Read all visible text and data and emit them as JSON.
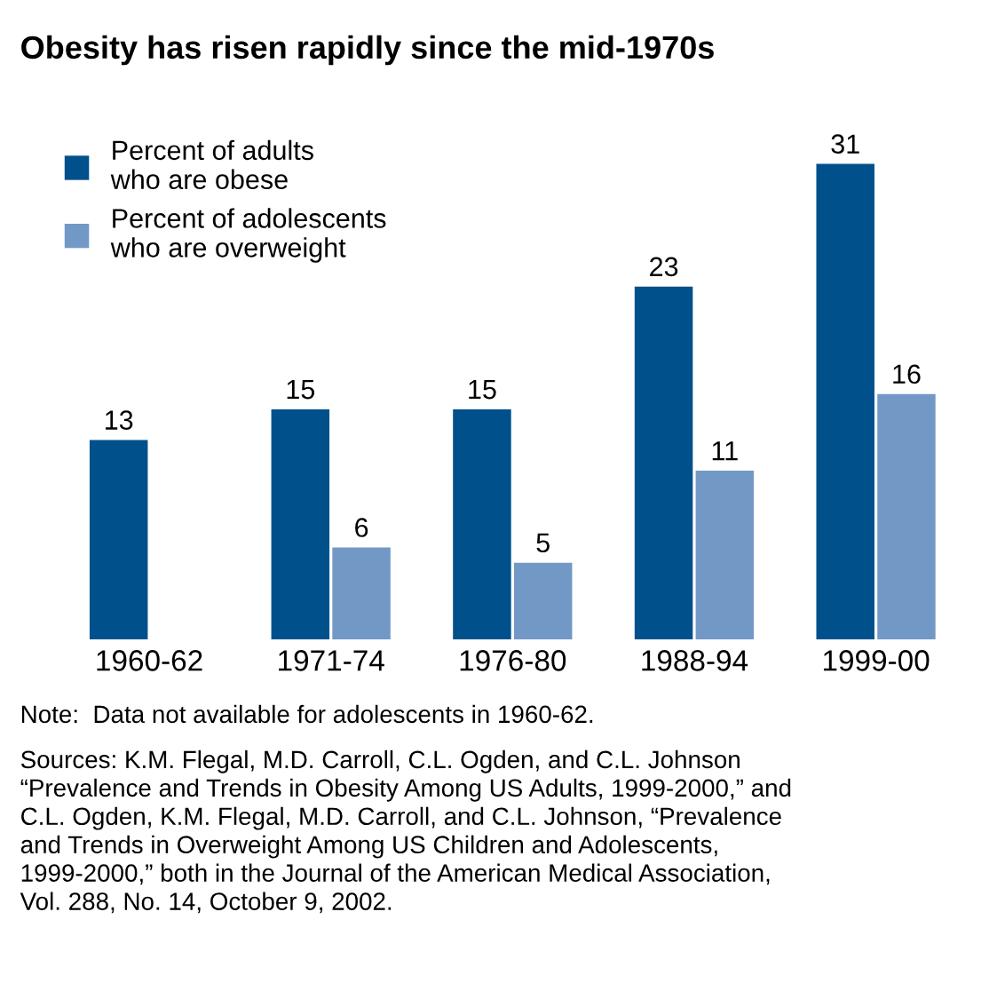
{
  "chart_data": {
    "type": "bar",
    "title": "Obesity has risen rapidly since the mid-1970s",
    "categories": [
      "1960-62",
      "1971-74",
      "1976-80",
      "1988-94",
      "1999-00"
    ],
    "series": [
      {
        "name": "Percent of adults\nwho are obese",
        "color": "#00508c",
        "values": [
          13,
          15,
          15,
          23,
          31
        ]
      },
      {
        "name": "Percent of adolescents\nwho are overweight",
        "color": "#7298c6",
        "values": [
          null,
          6,
          5,
          11,
          16
        ]
      }
    ],
    "data_labels": true,
    "legend": "top left",
    "grid": false,
    "tick_labels": "x",
    "annotations": [
      "Note:  Data not available for adolescents in 1960-62.",
      "Sources: K.M. Flegal, M.D. Carroll, C.L. Ogden, and C.L. Johnson\n“Prevalence and Trends in Obesity Among US Adults, 1999-2000,” and\nC.L. Ogden, K.M. Flegal, M.D. Carroll, and C.L. Johnson, “Prevalence\nand Trends in Overweight Among US Children and Adolescents,\n1999-2000,” both in the Journal of the American Medical Association,\nVol. 288, No. 14, October 9, 2002."
    ]
  }
}
